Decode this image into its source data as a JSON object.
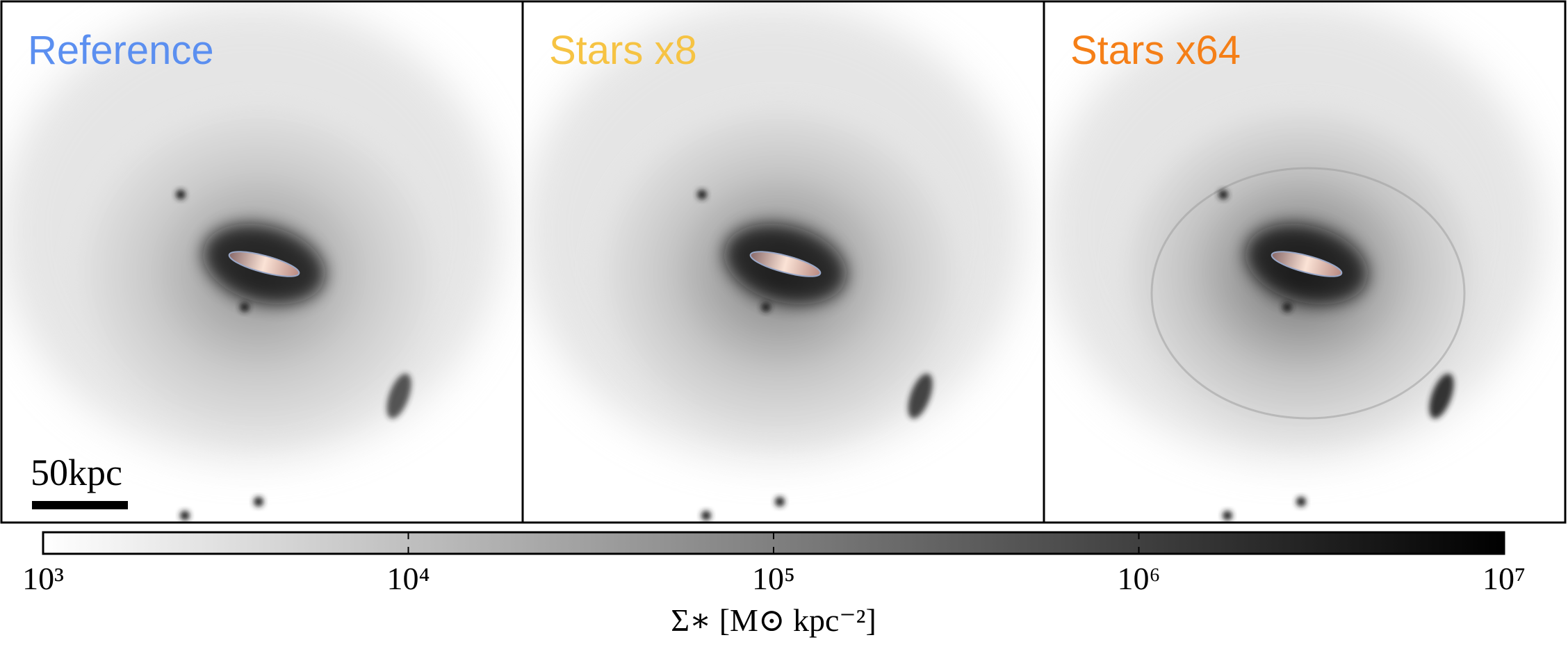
{
  "panels": [
    {
      "label": "Reference",
      "color": "#5b8ff0"
    },
    {
      "label": "Stars x8",
      "color": "#f6c343"
    },
    {
      "label": "Stars x64",
      "color": "#f57f17"
    }
  ],
  "scale_bar": {
    "label": "50kpc"
  },
  "colorbar": {
    "label": "Σ∗ [M⊙ kpc⁻²]",
    "scale": "log",
    "lim": [
      1000,
      10000000
    ],
    "ticks": [
      {
        "value": 1000,
        "label": "10³"
      },
      {
        "value": 10000,
        "label": "10⁴"
      },
      {
        "value": 100000,
        "label": "10⁵"
      },
      {
        "value": 1000000,
        "label": "10⁶"
      },
      {
        "value": 10000000,
        "label": "10⁷"
      }
    ],
    "colors": [
      "#ffffff",
      "#000000"
    ]
  }
}
